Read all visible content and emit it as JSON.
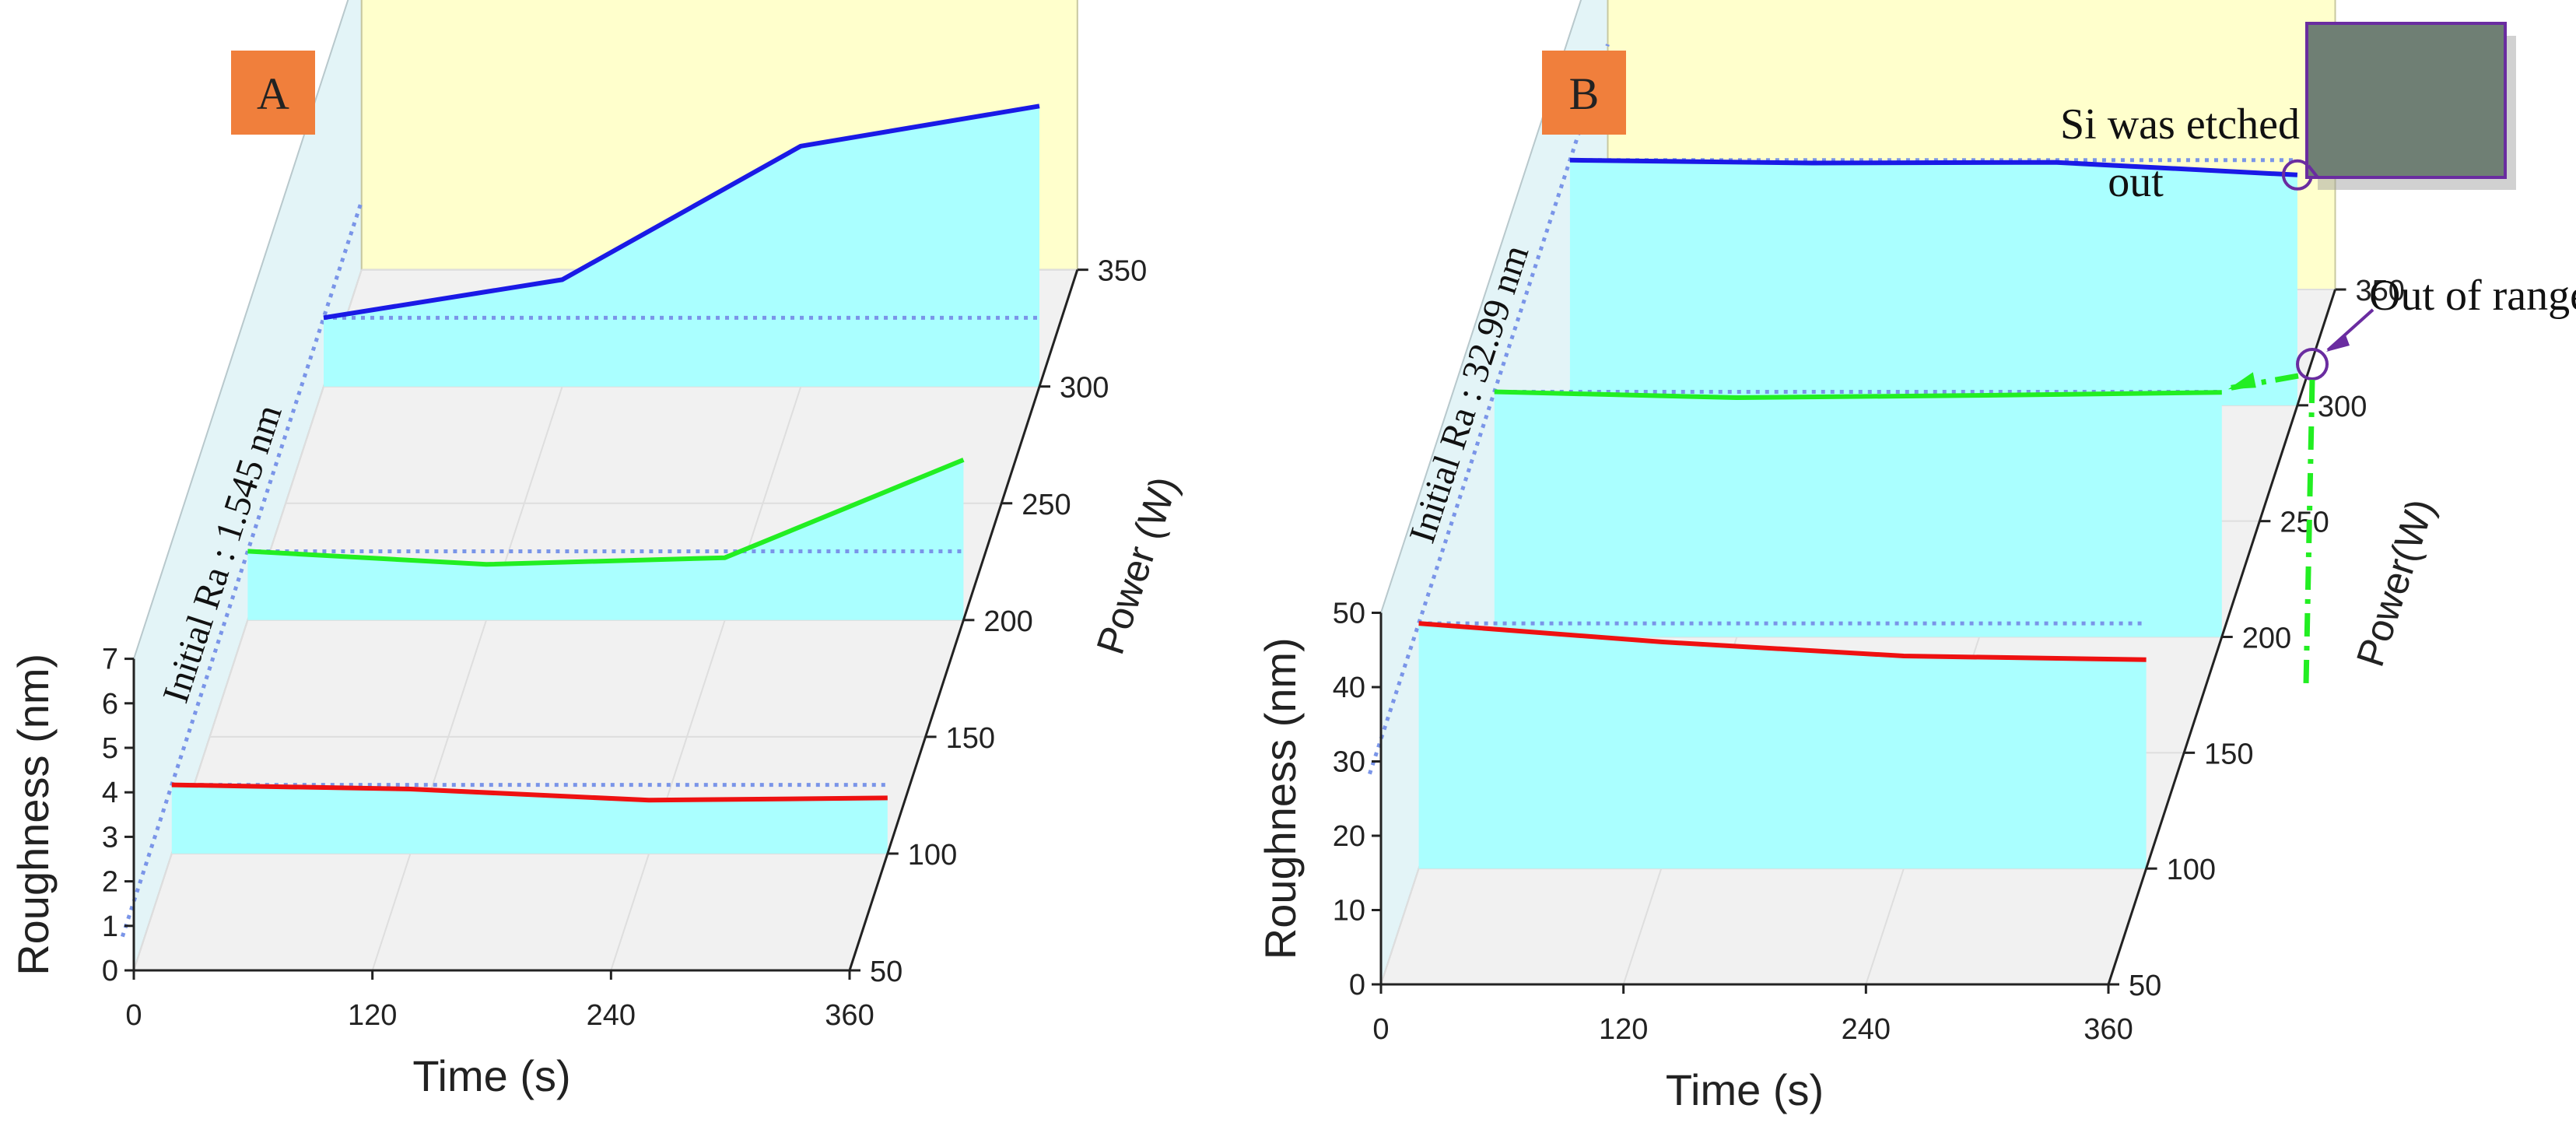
{
  "colors": {
    "wall_left": "#e3f4f7",
    "wall_back": "#ffffcc",
    "floor": "#f1f1f1",
    "grid": "#dedede",
    "fill": "#aaffff",
    "ref_line": "#7a95e8",
    "red": "#ee1111",
    "green": "#22ee22",
    "blue": "#1a1ae6",
    "label_bg": "#f07f3c",
    "marker": "#6a2ca0",
    "inset_fill": "#6f7f74",
    "inset_border": "#6a2ca0",
    "arrow": "#6a2ca0",
    "dashdot": "#22ee22"
  },
  "chart_data": [
    {
      "type": "line",
      "panel_label": "A",
      "xlabel": "Time (s)",
      "ylabel": "Roughness (nm)",
      "zlabel": "Power (W)",
      "x_ticks": [
        "0",
        "120",
        "240",
        "360"
      ],
      "y_ticks": [
        "0",
        "1",
        "2",
        "3",
        "4",
        "5",
        "6",
        "7"
      ],
      "z_ticks": [
        "50",
        "100",
        "150",
        "200",
        "250",
        "300",
        "350"
      ],
      "xlim": [
        0,
        360
      ],
      "ylim": [
        0,
        7
      ],
      "zlim": [
        50,
        350
      ],
      "reference": {
        "label": "Initial Ra : 1.545 nm",
        "value": 1.545
      },
      "series": [
        {
          "name": "100 W",
          "power": 100,
          "x": [
            0,
            120,
            240,
            360
          ],
          "y": [
            1.545,
            1.45,
            1.2,
            1.25
          ]
        },
        {
          "name": "200 W",
          "power": 200,
          "x": [
            0,
            120,
            240,
            360
          ],
          "y": [
            1.545,
            1.25,
            1.4,
            3.6
          ]
        },
        {
          "name": "300 W",
          "power": 300,
          "x": [
            0,
            120,
            240,
            360
          ],
          "y": [
            1.545,
            2.4,
            5.4,
            6.3
          ]
        }
      ]
    },
    {
      "type": "line",
      "panel_label": "B",
      "xlabel": "Time (s)",
      "ylabel": "Roughness (nm)",
      "zlabel": "Power(W)",
      "x_ticks": [
        "0",
        "120",
        "240",
        "360"
      ],
      "y_ticks": [
        "0",
        "10",
        "20",
        "30",
        "40",
        "50"
      ],
      "z_ticks": [
        "50",
        "100",
        "150",
        "200",
        "250",
        "300",
        "350"
      ],
      "xlim": [
        0,
        360
      ],
      "ylim": [
        0,
        50
      ],
      "zlim": [
        50,
        350
      ],
      "reference": {
        "label": "Initial Ra : 32.99 nm",
        "value": 32.99
      },
      "series": [
        {
          "name": "100 W",
          "power": 100,
          "x": [
            0,
            120,
            240,
            360
          ],
          "y": [
            32.99,
            30.5,
            28.6,
            28.1
          ]
        },
        {
          "name": "200 W",
          "power": 200,
          "x": [
            0,
            120,
            240,
            360
          ],
          "y": [
            32.99,
            32.2,
            32.5,
            32.9
          ]
        },
        {
          "name": "300 W",
          "power": 300,
          "x": [
            0,
            120,
            240,
            360
          ],
          "y": [
            32.99,
            32.6,
            32.7,
            31.0
          ]
        }
      ],
      "annotations": {
        "etched": "Si was etched\nout",
        "out_of_range": "Out of range"
      }
    }
  ]
}
